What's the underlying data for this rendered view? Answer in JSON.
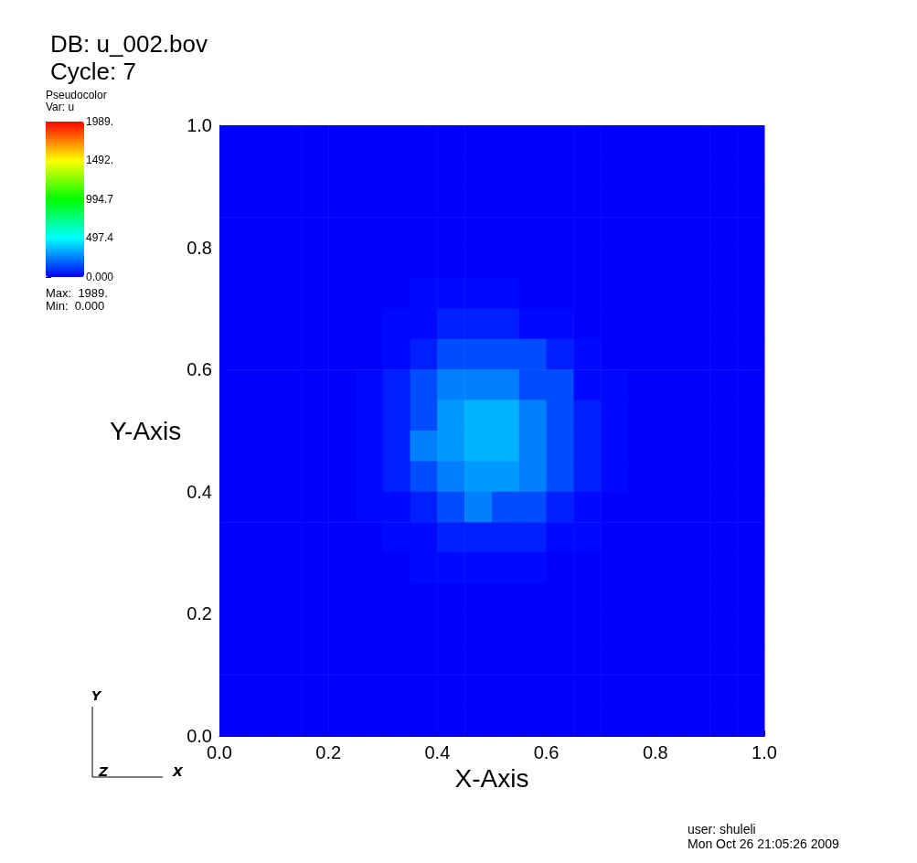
{
  "chart_data": {
    "type": "heatmap",
    "title": "DB: u_002.bov",
    "subtitle": "Cycle: 7",
    "legend_title": "Pseudocolor",
    "clabel": "Var: u",
    "xlabel": "X-Axis",
    "ylabel": "Y-Axis",
    "annotations": [
      "Max:  1989.",
      "Min:  0.000",
      "user: shuleli",
      "Mon Oct 26 21:05:26 2009",
      "Y",
      "Z",
      "X"
    ],
    "x": [
      0.025,
      0.075,
      0.125,
      0.175,
      0.225,
      0.275,
      0.325,
      0.375,
      0.425,
      0.475,
      0.525,
      0.575,
      0.625,
      0.675,
      0.725,
      0.775,
      0.825,
      0.875,
      0.925,
      0.975
    ],
    "y": [
      0.975,
      0.925,
      0.875,
      0.825,
      0.775,
      0.725,
      0.675,
      0.625,
      0.575,
      0.525,
      0.475,
      0.425,
      0.375,
      0.325,
      0.275,
      0.225,
      0.175,
      0.125,
      0.075,
      0.025
    ],
    "xlim": [
      0,
      1
    ],
    "ylim": [
      0,
      1
    ],
    "xticks": [
      {
        "value": 0,
        "label": "0.0"
      },
      0.2,
      0.4,
      0.6,
      0.8,
      {
        "value": 1,
        "label": "1.0"
      }
    ],
    "yticks": [
      {
        "value": 0,
        "label": "0.0"
      },
      0.2,
      0.4,
      0.6,
      0.8,
      {
        "value": 1,
        "label": "1.0"
      }
    ],
    "clim": [
      0,
      1989
    ],
    "cticks": [
      {
        "value": 0,
        "label": "0.000"
      },
      {
        "value": 497.4,
        "label": "497.4"
      },
      {
        "value": 994.7,
        "label": "994.7"
      },
      {
        "value": 1492,
        "label": "1492."
      },
      {
        "value": 1989,
        "label": "1989."
      }
    ],
    "cells": [
      [
        0,
        0,
        0,
        0,
        0,
        0,
        0,
        0,
        0,
        0,
        0,
        0,
        0,
        0,
        0,
        0,
        0,
        0,
        0,
        0
      ],
      [
        0,
        0,
        0,
        0,
        0,
        0,
        0,
        0,
        0,
        0,
        0,
        0,
        0,
        0,
        0,
        0,
        0,
        0,
        0,
        0
      ],
      [
        0,
        0,
        0,
        0,
        0,
        0,
        0,
        0,
        0,
        0,
        0,
        0,
        0,
        0,
        0,
        0,
        0,
        0,
        0,
        0
      ],
      [
        0,
        0,
        0,
        0,
        0,
        0,
        0,
        0,
        0,
        0,
        0,
        0,
        0,
        0,
        0,
        0,
        0,
        0,
        0,
        0
      ],
      [
        0,
        0,
        0,
        0,
        0,
        0,
        0,
        0,
        0,
        0,
        0,
        0,
        0,
        0,
        0,
        0,
        0,
        0,
        0,
        0
      ],
      [
        0,
        0,
        0,
        0,
        0,
        0,
        0,
        15,
        15,
        15,
        15,
        0,
        0,
        0,
        0,
        0,
        0,
        0,
        0,
        0
      ],
      [
        0,
        0,
        0,
        0,
        0,
        0,
        15,
        15,
        60,
        60,
        60,
        15,
        15,
        0,
        0,
        0,
        0,
        0,
        0,
        0
      ],
      [
        0,
        0,
        0,
        0,
        0,
        0,
        15,
        60,
        150,
        150,
        150,
        150,
        60,
        15,
        0,
        0,
        0,
        0,
        0,
        0
      ],
      [
        0,
        0,
        0,
        0,
        0,
        15,
        60,
        150,
        250,
        250,
        250,
        150,
        150,
        15,
        15,
        0,
        0,
        0,
        0,
        0
      ],
      [
        0,
        0,
        0,
        0,
        0,
        15,
        60,
        150,
        300,
        350,
        350,
        250,
        150,
        60,
        15,
        0,
        0,
        0,
        0,
        0
      ],
      [
        0,
        0,
        0,
        0,
        0,
        15,
        60,
        250,
        300,
        350,
        350,
        250,
        150,
        60,
        15,
        0,
        0,
        0,
        0,
        0
      ],
      [
        0,
        0,
        0,
        0,
        0,
        15,
        60,
        150,
        250,
        300,
        300,
        250,
        150,
        60,
        15,
        0,
        0,
        0,
        0,
        0
      ],
      [
        0,
        0,
        0,
        0,
        0,
        15,
        15,
        60,
        150,
        250,
        150,
        150,
        60,
        15,
        0,
        0,
        0,
        0,
        0,
        0
      ],
      [
        0,
        0,
        0,
        0,
        0,
        0,
        15,
        15,
        60,
        60,
        60,
        60,
        15,
        15,
        0,
        0,
        0,
        0,
        0,
        0
      ],
      [
        0,
        0,
        0,
        0,
        0,
        0,
        0,
        15,
        15,
        15,
        15,
        15,
        0,
        0,
        0,
        0,
        0,
        0,
        0,
        0
      ],
      [
        0,
        0,
        0,
        0,
        0,
        0,
        0,
        0,
        0,
        0,
        0,
        0,
        0,
        0,
        0,
        0,
        0,
        0,
        0,
        0
      ],
      [
        0,
        0,
        0,
        0,
        0,
        0,
        0,
        0,
        0,
        0,
        0,
        0,
        0,
        0,
        0,
        0,
        0,
        0,
        0,
        0
      ],
      [
        0,
        0,
        0,
        0,
        0,
        0,
        0,
        0,
        0,
        0,
        0,
        0,
        0,
        0,
        0,
        0,
        0,
        0,
        0,
        0
      ],
      [
        0,
        0,
        0,
        0,
        0,
        0,
        0,
        0,
        0,
        0,
        0,
        0,
        0,
        0,
        0,
        0,
        0,
        0,
        0,
        0
      ],
      [
        0,
        0,
        0,
        0,
        0,
        0,
        0,
        0,
        0,
        0,
        0,
        0,
        0,
        0,
        0,
        0,
        0,
        0,
        0,
        0
      ]
    ]
  }
}
